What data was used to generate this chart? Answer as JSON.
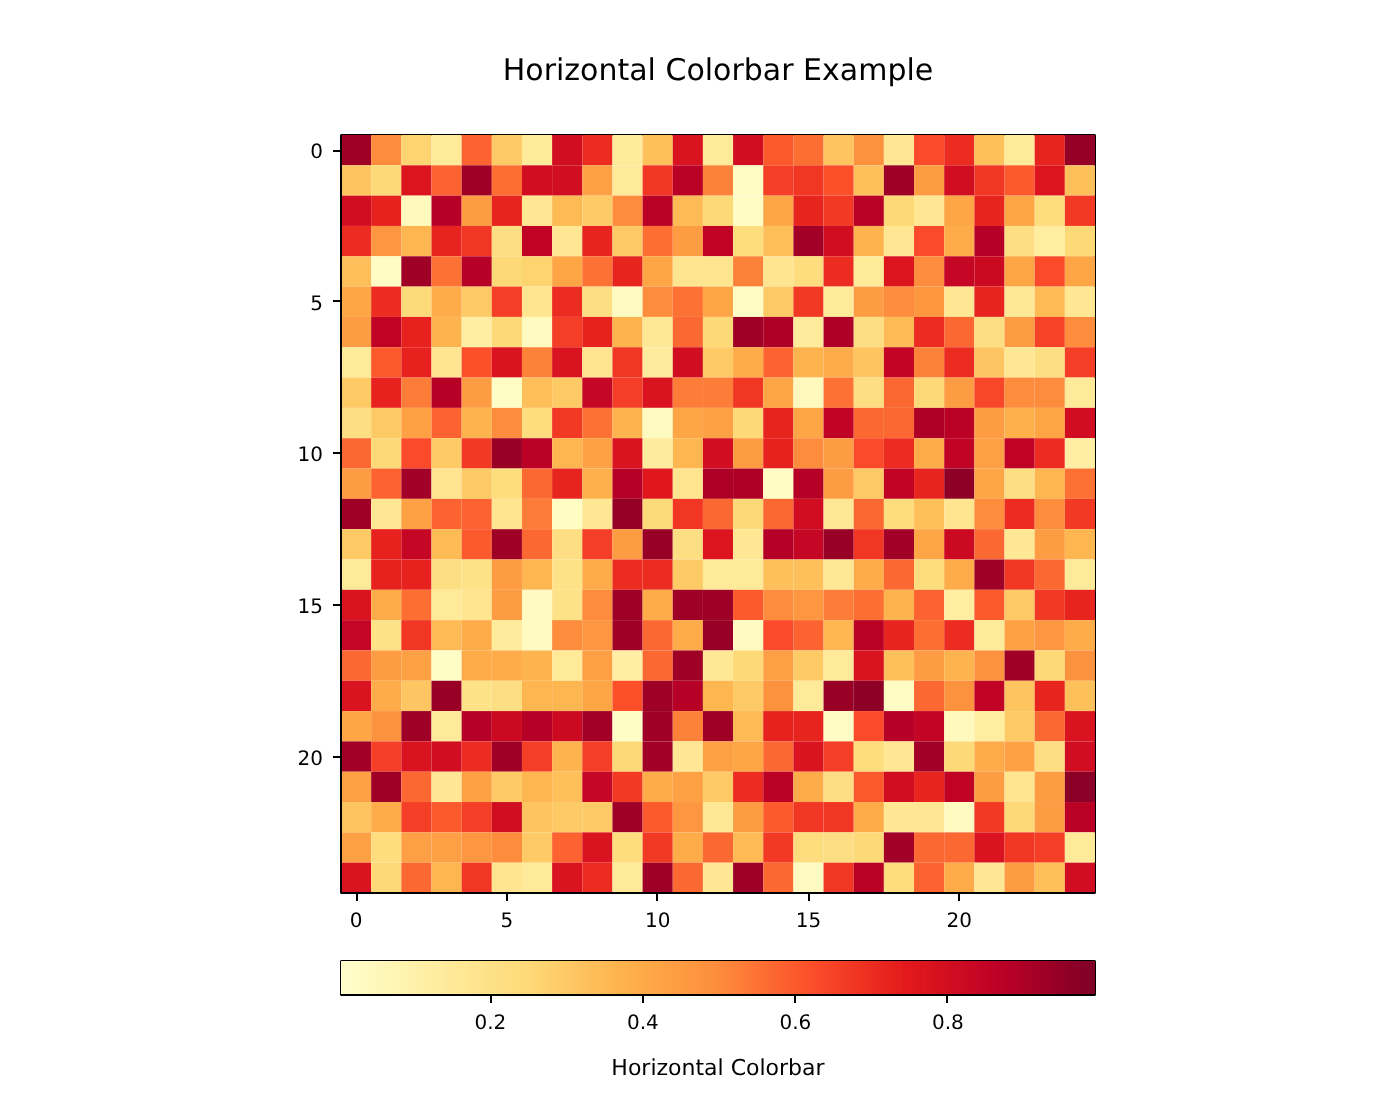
{
  "chart_data": {
    "type": "heatmap",
    "title": "Horizontal Colorbar Example",
    "clabel": "Horizontal Colorbar",
    "categories": [
      "0",
      null,
      null,
      null,
      null,
      "5",
      null,
      null,
      null,
      null,
      "10",
      null,
      null,
      null,
      null,
      "15",
      null,
      null,
      null,
      null,
      "20",
      null,
      null,
      null,
      null
    ],
    "y_categories": [
      "0",
      null,
      null,
      null,
      null,
      "5",
      null,
      null,
      null,
      null,
      "10",
      null,
      null,
      null,
      null,
      "15",
      null,
      null,
      null,
      null,
      "20",
      null,
      null,
      null,
      null
    ],
    "clim": [
      0.004,
      0.993
    ],
    "cticks": [
      0.2,
      0.4,
      0.6,
      0.8
    ],
    "cells": [
      [
        0.93,
        0.5,
        0.27,
        0.15,
        0.58,
        0.3,
        0.15,
        0.8,
        0.7,
        0.15,
        0.33,
        0.78,
        0.15,
        0.8,
        0.6,
        0.56,
        0.32,
        0.48,
        0.17,
        0.63,
        0.7,
        0.33,
        0.15,
        0.72,
        0.95
      ],
      [
        0.32,
        0.25,
        0.77,
        0.58,
        0.93,
        0.56,
        0.8,
        0.8,
        0.44,
        0.15,
        0.68,
        0.87,
        0.52,
        0.03,
        0.66,
        0.68,
        0.62,
        0.33,
        0.93,
        0.45,
        0.8,
        0.68,
        0.6,
        0.77,
        0.33
      ],
      [
        0.8,
        0.73,
        0.05,
        0.88,
        0.45,
        0.72,
        0.17,
        0.35,
        0.3,
        0.5,
        0.87,
        0.35,
        0.25,
        0.03,
        0.42,
        0.72,
        0.67,
        0.87,
        0.25,
        0.17,
        0.42,
        0.72,
        0.42,
        0.23,
        0.67
      ],
      [
        0.7,
        0.47,
        0.36,
        0.72,
        0.68,
        0.22,
        0.86,
        0.17,
        0.72,
        0.3,
        0.56,
        0.45,
        0.86,
        0.23,
        0.34,
        0.92,
        0.8,
        0.37,
        0.17,
        0.63,
        0.4,
        0.88,
        0.22,
        0.13,
        0.25
      ],
      [
        0.34,
        0.03,
        0.93,
        0.55,
        0.88,
        0.25,
        0.27,
        0.42,
        0.55,
        0.72,
        0.42,
        0.18,
        0.18,
        0.52,
        0.18,
        0.23,
        0.7,
        0.15,
        0.77,
        0.5,
        0.84,
        0.82,
        0.42,
        0.63,
        0.42
      ],
      [
        0.42,
        0.7,
        0.24,
        0.4,
        0.3,
        0.66,
        0.18,
        0.7,
        0.22,
        0.04,
        0.5,
        0.55,
        0.42,
        0.03,
        0.3,
        0.67,
        0.15,
        0.45,
        0.5,
        0.46,
        0.17,
        0.72,
        0.16,
        0.35,
        0.17
      ],
      [
        0.45,
        0.86,
        0.73,
        0.37,
        0.12,
        0.25,
        0.04,
        0.66,
        0.73,
        0.37,
        0.16,
        0.57,
        0.25,
        0.93,
        0.9,
        0.14,
        0.9,
        0.22,
        0.35,
        0.7,
        0.57,
        0.22,
        0.45,
        0.65,
        0.5
      ],
      [
        0.15,
        0.6,
        0.73,
        0.18,
        0.62,
        0.78,
        0.52,
        0.78,
        0.18,
        0.68,
        0.14,
        0.8,
        0.3,
        0.4,
        0.58,
        0.37,
        0.4,
        0.32,
        0.85,
        0.52,
        0.7,
        0.31,
        0.17,
        0.22,
        0.66
      ],
      [
        0.3,
        0.73,
        0.53,
        0.88,
        0.45,
        0.02,
        0.34,
        0.3,
        0.84,
        0.66,
        0.78,
        0.53,
        0.53,
        0.68,
        0.42,
        0.05,
        0.55,
        0.22,
        0.57,
        0.25,
        0.45,
        0.64,
        0.5,
        0.5,
        0.15
      ],
      [
        0.22,
        0.3,
        0.43,
        0.58,
        0.37,
        0.5,
        0.23,
        0.67,
        0.55,
        0.37,
        0.04,
        0.42,
        0.43,
        0.25,
        0.72,
        0.42,
        0.86,
        0.57,
        0.57,
        0.9,
        0.87,
        0.45,
        0.38,
        0.42,
        0.8
      ],
      [
        0.57,
        0.25,
        0.63,
        0.3,
        0.67,
        0.94,
        0.87,
        0.36,
        0.43,
        0.78,
        0.14,
        0.36,
        0.8,
        0.45,
        0.73,
        0.5,
        0.45,
        0.63,
        0.7,
        0.4,
        0.86,
        0.44,
        0.86,
        0.7,
        0.12
      ],
      [
        0.45,
        0.58,
        0.92,
        0.18,
        0.3,
        0.23,
        0.57,
        0.72,
        0.38,
        0.88,
        0.76,
        0.18,
        0.9,
        0.9,
        0.03,
        0.88,
        0.45,
        0.3,
        0.86,
        0.72,
        0.96,
        0.42,
        0.22,
        0.36,
        0.55
      ],
      [
        0.93,
        0.17,
        0.43,
        0.58,
        0.58,
        0.18,
        0.53,
        0.03,
        0.17,
        0.95,
        0.24,
        0.68,
        0.57,
        0.25,
        0.57,
        0.8,
        0.16,
        0.57,
        0.23,
        0.33,
        0.18,
        0.5,
        0.7,
        0.5,
        0.67
      ],
      [
        0.3,
        0.73,
        0.84,
        0.35,
        0.6,
        0.93,
        0.57,
        0.22,
        0.66,
        0.45,
        0.94,
        0.22,
        0.77,
        0.17,
        0.88,
        0.84,
        0.94,
        0.68,
        0.92,
        0.42,
        0.82,
        0.57,
        0.17,
        0.45,
        0.36
      ],
      [
        0.15,
        0.73,
        0.73,
        0.22,
        0.2,
        0.45,
        0.36,
        0.2,
        0.4,
        0.7,
        0.7,
        0.3,
        0.15,
        0.15,
        0.33,
        0.33,
        0.16,
        0.4,
        0.57,
        0.23,
        0.4,
        0.93,
        0.68,
        0.57,
        0.15
      ],
      [
        0.78,
        0.4,
        0.56,
        0.15,
        0.18,
        0.45,
        0.04,
        0.2,
        0.5,
        0.93,
        0.4,
        0.93,
        0.93,
        0.6,
        0.5,
        0.47,
        0.53,
        0.56,
        0.37,
        0.58,
        0.13,
        0.6,
        0.3,
        0.67,
        0.72
      ],
      [
        0.84,
        0.2,
        0.68,
        0.35,
        0.4,
        0.14,
        0.04,
        0.5,
        0.47,
        0.93,
        0.57,
        0.4,
        0.94,
        0.04,
        0.63,
        0.58,
        0.36,
        0.87,
        0.72,
        0.56,
        0.7,
        0.15,
        0.43,
        0.47,
        0.4
      ],
      [
        0.57,
        0.45,
        0.43,
        0.02,
        0.4,
        0.4,
        0.37,
        0.15,
        0.44,
        0.12,
        0.57,
        0.93,
        0.16,
        0.25,
        0.44,
        0.3,
        0.15,
        0.78,
        0.33,
        0.45,
        0.37,
        0.48,
        0.93,
        0.25,
        0.48
      ],
      [
        0.78,
        0.4,
        0.31,
        0.94,
        0.2,
        0.22,
        0.36,
        0.36,
        0.42,
        0.62,
        0.93,
        0.88,
        0.36,
        0.3,
        0.48,
        0.15,
        0.94,
        0.96,
        0.03,
        0.57,
        0.48,
        0.86,
        0.32,
        0.72,
        0.33
      ],
      [
        0.42,
        0.48,
        0.93,
        0.15,
        0.88,
        0.82,
        0.88,
        0.82,
        0.92,
        0.02,
        0.93,
        0.52,
        0.93,
        0.35,
        0.73,
        0.72,
        0.03,
        0.63,
        0.88,
        0.85,
        0.05,
        0.13,
        0.3,
        0.57,
        0.78
      ],
      [
        0.92,
        0.66,
        0.78,
        0.8,
        0.7,
        0.93,
        0.66,
        0.37,
        0.66,
        0.25,
        0.92,
        0.17,
        0.43,
        0.42,
        0.57,
        0.78,
        0.66,
        0.23,
        0.17,
        0.92,
        0.25,
        0.4,
        0.43,
        0.22,
        0.8
      ],
      [
        0.43,
        0.93,
        0.57,
        0.17,
        0.43,
        0.3,
        0.36,
        0.33,
        0.84,
        0.67,
        0.4,
        0.43,
        0.3,
        0.7,
        0.87,
        0.4,
        0.22,
        0.6,
        0.8,
        0.72,
        0.86,
        0.45,
        0.18,
        0.45,
        0.97
      ],
      [
        0.32,
        0.4,
        0.66,
        0.6,
        0.66,
        0.8,
        0.32,
        0.3,
        0.3,
        0.93,
        0.6,
        0.47,
        0.16,
        0.45,
        0.6,
        0.68,
        0.68,
        0.4,
        0.17,
        0.17,
        0.04,
        0.67,
        0.25,
        0.45,
        0.87
      ],
      [
        0.43,
        0.23,
        0.44,
        0.44,
        0.47,
        0.5,
        0.3,
        0.58,
        0.78,
        0.23,
        0.67,
        0.4,
        0.57,
        0.35,
        0.67,
        0.23,
        0.22,
        0.25,
        0.92,
        0.57,
        0.57,
        0.78,
        0.68,
        0.66,
        0.15
      ],
      [
        0.78,
        0.25,
        0.57,
        0.36,
        0.68,
        0.18,
        0.15,
        0.78,
        0.7,
        0.15,
        0.93,
        0.57,
        0.17,
        0.93,
        0.57,
        0.04,
        0.68,
        0.87,
        0.23,
        0.58,
        0.4,
        0.17,
        0.45,
        0.33,
        0.8
      ]
    ]
  }
}
